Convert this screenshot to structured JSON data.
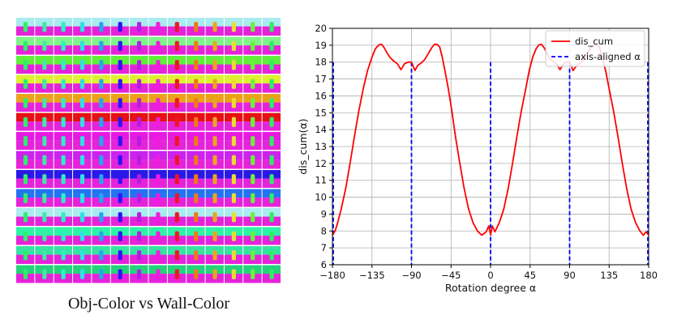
{
  "image_grid": {
    "caption": "Obj-Color vs Wall-Color",
    "rows": 14,
    "cols": 14,
    "row_colors": [
      "#a9ebef",
      "#7ff38a",
      "#60f03a",
      "#dff02f",
      "#eba21a",
      "#e61015",
      "#e61ae0",
      "#cc22ee",
      "#2a18e6",
      "#2573f0",
      "#a9ebef",
      "#2cf4a6",
      "#35e4a0",
      "#25d37a"
    ],
    "col_colors": [
      "#2cf06a",
      "#41e8a6",
      "#2cf0c8",
      "#2fe0e6",
      "#23a6f0",
      "#2e14f5",
      "#b51de5",
      "#f01bdf",
      "#f01524",
      "#f07a16",
      "#eaa620",
      "#e8df32",
      "#6af33a",
      "#2cf060"
    ],
    "floor_color": "#e523d9"
  },
  "chart_data": {
    "type": "line",
    "xlabel": "Rotation degree α",
    "ylabel": "dis_cum(α)",
    "xlim": [
      -180,
      180
    ],
    "ylim": [
      6,
      20
    ],
    "xticks": [
      "−180",
      "−135",
      "−90",
      "−45",
      "0",
      "45",
      "90",
      "135",
      "180"
    ],
    "xtick_values": [
      -180,
      -135,
      -90,
      -45,
      0,
      45,
      90,
      135,
      180
    ],
    "yticks": [
      "6",
      "7",
      "8",
      "9",
      "10",
      "11",
      "12",
      "13",
      "14",
      "15",
      "16",
      "17",
      "18",
      "19",
      "20"
    ],
    "ytick_values": [
      6,
      7,
      8,
      9,
      10,
      11,
      12,
      13,
      14,
      15,
      16,
      17,
      18,
      19,
      20
    ],
    "grid": true,
    "legend_position": "top-right",
    "series": [
      {
        "name": "dis_cum",
        "color": "#ff0000",
        "style": "solid",
        "x": [
          -180,
          -177,
          -174,
          -170,
          -165,
          -160,
          -155,
          -150,
          -145,
          -140,
          -135,
          -131,
          -127,
          -124,
          -121,
          -118,
          -114,
          -110,
          -106,
          -102,
          -98,
          -94,
          -90,
          -86,
          -83,
          -79,
          -75,
          -71,
          -67,
          -64,
          -61,
          -58,
          -55,
          -52,
          -48,
          -44,
          -40,
          -35,
          -30,
          -25,
          -20,
          -15,
          -10,
          -5,
          -2,
          0,
          2,
          5,
          10,
          15,
          20,
          25,
          30,
          35,
          40,
          44,
          48,
          52,
          55,
          58,
          61,
          64,
          67,
          71,
          75,
          79,
          83,
          86,
          90,
          94,
          98,
          102,
          106,
          110,
          114,
          118,
          121,
          124,
          127,
          131,
          135,
          140,
          145,
          150,
          155,
          160,
          165,
          170,
          174,
          177,
          180
        ],
        "y": [
          7.75,
          8.0,
          8.5,
          9.3,
          10.5,
          12.0,
          13.6,
          15.1,
          16.4,
          17.5,
          18.3,
          18.8,
          19.02,
          19.05,
          18.85,
          18.55,
          18.25,
          18.05,
          17.9,
          17.55,
          17.9,
          18.0,
          18.0,
          17.5,
          17.8,
          17.95,
          18.15,
          18.5,
          18.85,
          19.05,
          19.05,
          18.9,
          18.3,
          17.5,
          16.4,
          15.1,
          13.6,
          12.0,
          10.5,
          9.3,
          8.5,
          8.0,
          7.75,
          7.95,
          8.3,
          7.75,
          8.3,
          7.95,
          8.5,
          9.3,
          10.5,
          12.0,
          13.6,
          15.1,
          16.4,
          17.5,
          18.3,
          18.8,
          19.02,
          19.05,
          18.85,
          18.55,
          18.25,
          18.05,
          17.9,
          17.55,
          17.9,
          18.0,
          18.0,
          17.5,
          17.8,
          17.95,
          18.15,
          18.5,
          18.85,
          19.05,
          19.05,
          18.9,
          18.3,
          17.5,
          16.4,
          15.1,
          13.6,
          12.0,
          10.5,
          9.3,
          8.5,
          8.0,
          7.75,
          7.95,
          7.75
        ]
      },
      {
        "name": "axis-aligned α",
        "color": "#0000ff",
        "style": "dashed",
        "x": [
          -180,
          -90,
          0,
          90,
          180
        ]
      }
    ]
  }
}
